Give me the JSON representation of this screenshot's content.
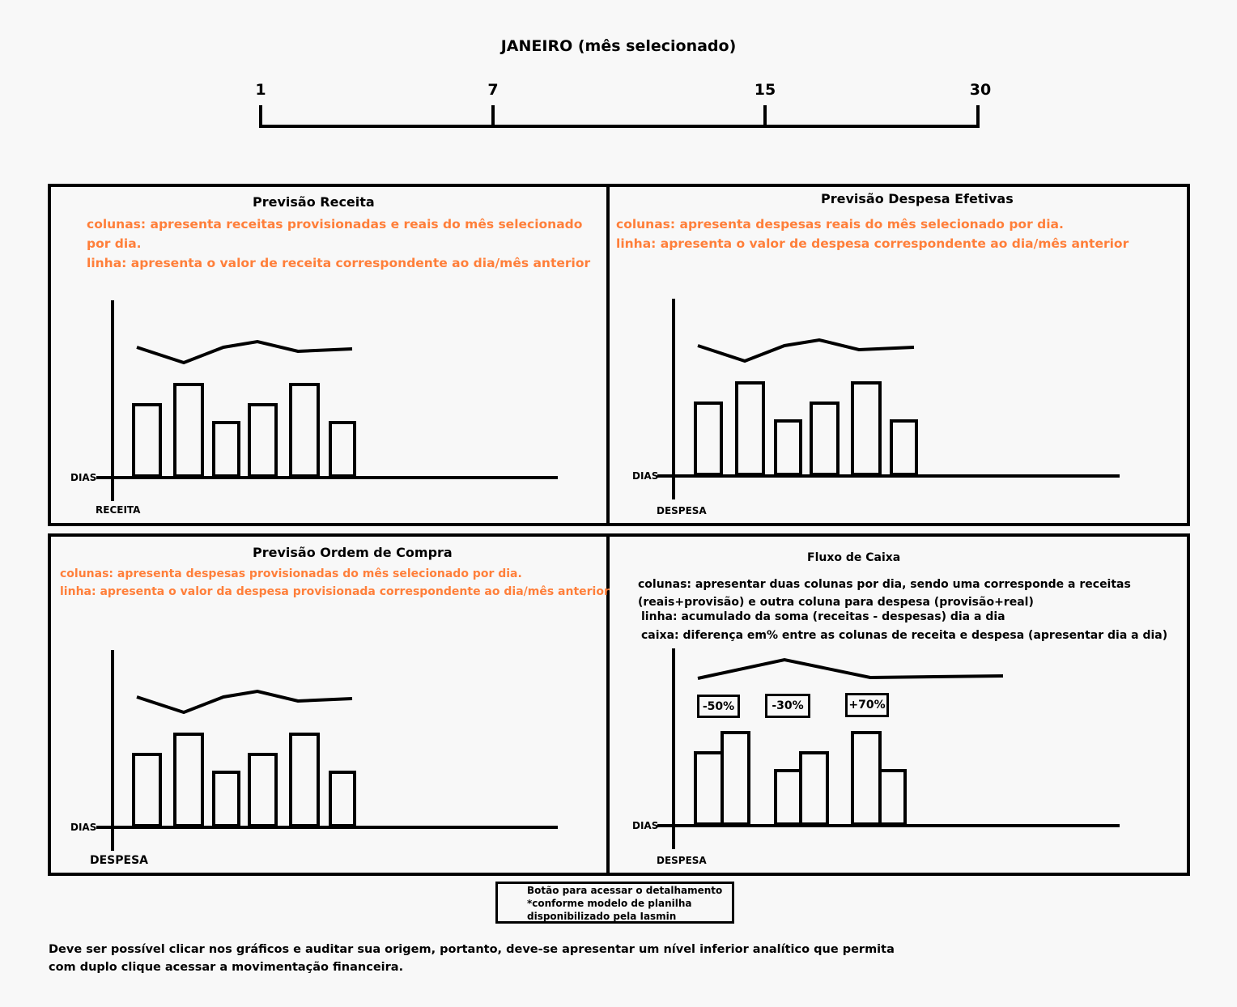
{
  "header": {
    "month_title": "JANEIRO (mês selecionado)",
    "day_ticks": [
      "1",
      "7",
      "15",
      "30"
    ]
  },
  "panels": {
    "receita": {
      "title": "Previsão Receita",
      "desc": [
        "colunas: apresenta receitas provisionadas e reais do mês selecionado",
        "por dia.",
        "linha: apresenta o valor de receita correspondente ao dia/mês anterior"
      ],
      "x_axis_label": "DIAS",
      "y_axis_label": "RECEITA"
    },
    "despesa_efetivas": {
      "title": "Previsão Despesa Efetivas",
      "desc": [
        "colunas: apresenta despesas reais do mês selecionado por dia.",
        "linha: apresenta o valor de despesa correspondente ao dia/mês anterior"
      ],
      "x_axis_label": "DIAS",
      "y_axis_label": "DESPESA"
    },
    "ordem_compra": {
      "title": "Previsão Ordem de Compra",
      "desc": [
        "colunas: apresenta despesas provisionadas do mês selecionado por dia.",
        "linha: apresenta o valor da despesa provisionada correspondente ao dia/mês anterior"
      ],
      "x_axis_label": "DIAS",
      "y_axis_label": "DESPESA"
    },
    "fluxo_caixa": {
      "title": "Fluxo de Caixa",
      "desc": [
        "colunas: apresentar duas colunas por dia, sendo uma corresponde a receitas",
        "(reais+provisão) e outra coluna para despesa (provisão+real)",
        "linha: acumulado da soma (receitas - despesas) dia a dia",
        "caixa: diferença em% entre as colunas de receita e despesa (apresentar dia a dia)"
      ],
      "x_axis_label": "DIAS",
      "y_axis_label": "DESPESA",
      "pct_labels": [
        "-50%",
        "-30%",
        "+70%"
      ]
    }
  },
  "detail_button": {
    "lines": [
      "Botão para acessar o detalhamento",
      "*conforme modelo de planilha",
      "disponibilizado pela Iasmin"
    ]
  },
  "footer": {
    "lines": [
      "Deve ser possível clicar nos gráficos e auditar sua origem, portanto, deve-se apresentar um nível inferior analítico que permita",
      "com duplo clique acessar a movimentação financeira."
    ]
  }
}
